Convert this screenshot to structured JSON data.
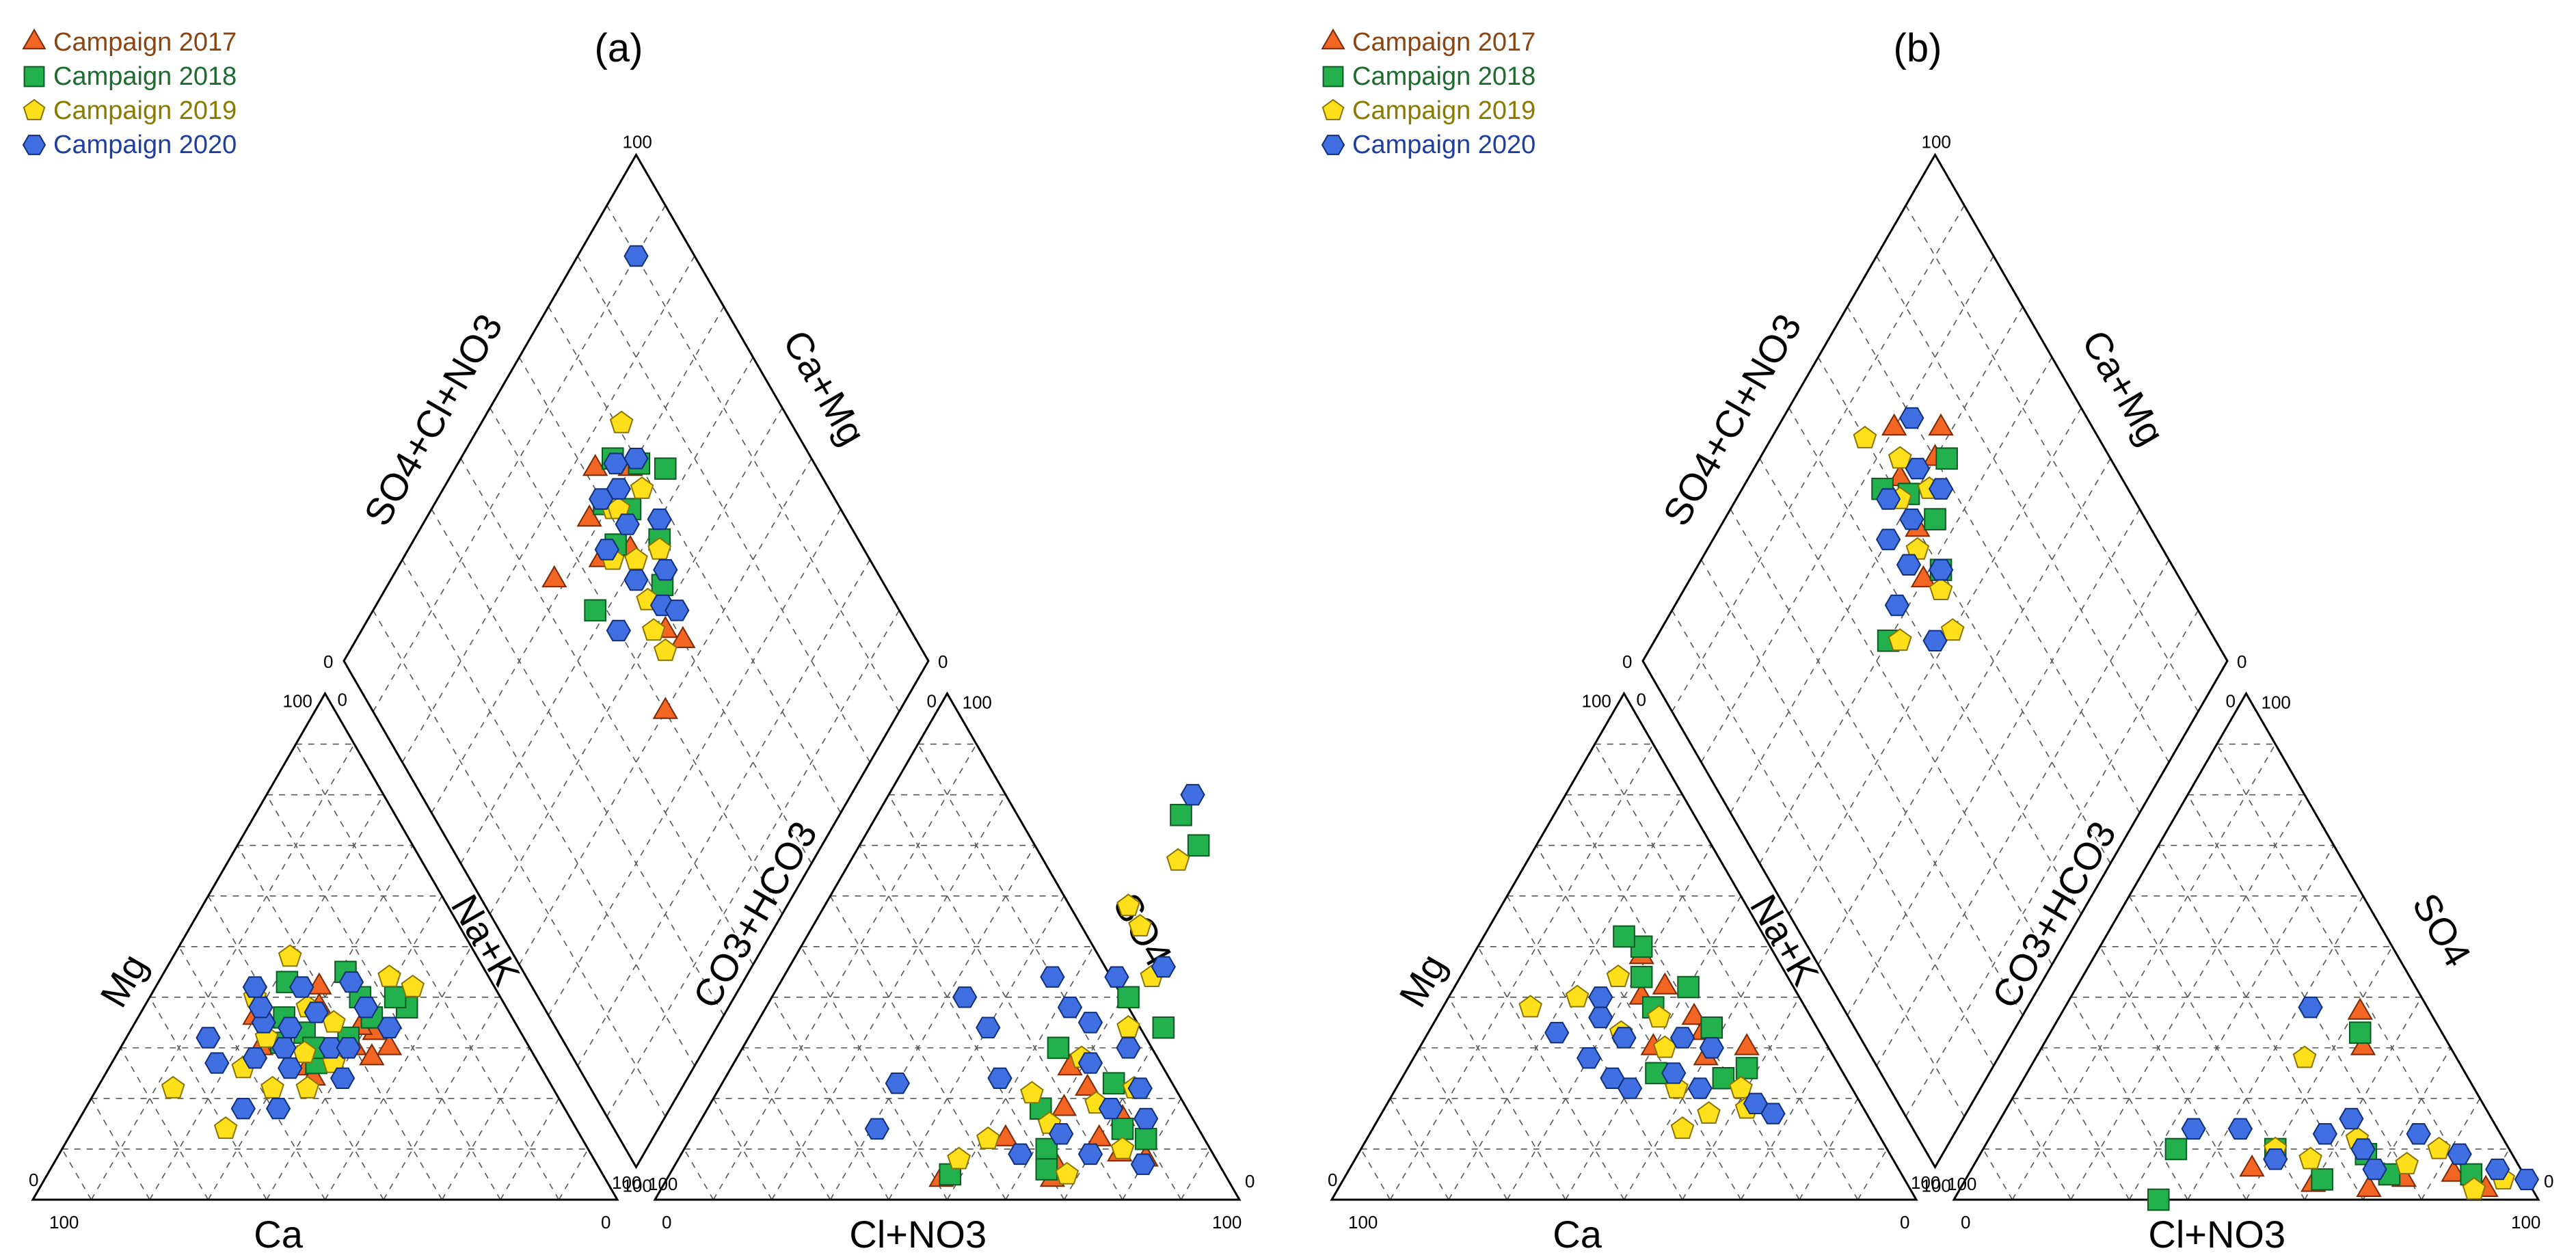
{
  "chart_data": [
    {
      "type": "scatter",
      "subtype": "piper-diagram",
      "title": "(a)",
      "legend": {
        "placement": "top-left",
        "entries": [
          {
            "name": "Campaign 2017",
            "marker": "triangle",
            "color": "#F26522",
            "text_color": "#8B4513"
          },
          {
            "name": "Campaign 2018",
            "marker": "square",
            "color": "#22B14C",
            "text_color": "#1E6B2F"
          },
          {
            "name": "Campaign 2019",
            "marker": "pentagon",
            "color": "#FFE01A",
            "text_color": "#8A7A00"
          },
          {
            "name": "Campaign 2020",
            "marker": "hexagon",
            "color": "#3F6FE0",
            "text_color": "#1F3F9F"
          }
        ]
      },
      "axis_labels": {
        "cation_left": "Mg",
        "cation_right": "Na+K",
        "cation_bottom": "Ca",
        "anion_left": "CO3+HCO3",
        "anion_right": "SO4",
        "anion_bottom": "Cl+NO3",
        "diamond_left": "SO4+Cl+NO3",
        "diamond_right": "Ca+Mg"
      },
      "ticks": {
        "cation_top": "0",
        "cation_left_top": "100",
        "cation_bottom_left": "100",
        "cation_bottom_right": "0",
        "cation_left_bottom": "0",
        "cation_right_bottom": "100",
        "anion_top": "0",
        "anion_right_top": "100",
        "anion_bottom_left": "0",
        "anion_bottom_right": "100",
        "anion_left_bottom": "100",
        "anion_right_bottom": "0",
        "diamond_top": "100",
        "diamond_left": "0",
        "diamond_right": "0",
        "diamond_bottom": "100"
      },
      "cation_points": {
        "Campaign 2017": [
          [
            42,
            33
          ],
          [
            40,
            30
          ],
          [
            44,
            28
          ],
          [
            30,
            38
          ],
          [
            34,
            26
          ],
          [
            36,
            24
          ],
          [
            46,
            30
          ],
          [
            39,
            34
          ],
          [
            20,
            36
          ],
          [
            28,
            42
          ],
          [
            24,
            30
          ]
        ],
        "Campaign 2018": [
          [
            36,
            40
          ],
          [
            30,
            33
          ],
          [
            40,
            36
          ],
          [
            35,
            27
          ],
          [
            27,
            31
          ],
          [
            22,
            43
          ],
          [
            38,
            32
          ],
          [
            45,
            38
          ],
          [
            31,
            45
          ],
          [
            25,
            36
          ],
          [
            33,
            30
          ],
          [
            42,
            40
          ]
        ],
        "Campaign 2019": [
          [
            13,
            22
          ],
          [
            26,
            14
          ],
          [
            30,
            22
          ],
          [
            24,
            32
          ],
          [
            34,
            35
          ],
          [
            18,
            40
          ],
          [
            32,
            29
          ],
          [
            28,
            38
          ],
          [
            39,
            44
          ],
          [
            36,
            22
          ],
          [
            23,
            26
          ],
          [
            44,
            42
          ],
          [
            20,
            48
          ],
          [
            38,
            27
          ]
        ],
        "Campaign 2020": [
          [
            14,
            32
          ],
          [
            18,
            27
          ],
          [
            27,
            18
          ],
          [
            33,
            18
          ],
          [
            41,
            24
          ],
          [
            36,
            30
          ],
          [
            27,
            34
          ],
          [
            22,
            35
          ],
          [
            30,
            37
          ],
          [
            25,
            42
          ],
          [
            20,
            38
          ],
          [
            17,
            42
          ],
          [
            33,
            43
          ],
          [
            38,
            38
          ],
          [
            28,
            30
          ],
          [
            24,
            28
          ],
          [
            31,
            26
          ],
          [
            39,
            30
          ],
          [
            44,
            34
          ]
        ]
      },
      "anion_points": {
        "Campaign 2017": [
          [
            54,
            12
          ],
          [
            65,
            7
          ],
          [
            70,
            12
          ],
          [
            61,
            18
          ],
          [
            75,
            9
          ],
          [
            66,
            4
          ],
          [
            58,
            26
          ],
          [
            72,
            16
          ],
          [
            47,
            4
          ],
          [
            80,
            8
          ],
          [
            63,
            22
          ]
        ],
        "Campaign 2018": [
          [
            52,
            76
          ],
          [
            58,
            70
          ],
          [
            48,
            5
          ],
          [
            62,
            10
          ],
          [
            57,
            18
          ],
          [
            67,
            23
          ],
          [
            73,
            14
          ],
          [
            54,
            30
          ],
          [
            70,
            34
          ],
          [
            61,
            40
          ],
          [
            78,
            12
          ],
          [
            64,
            6
          ]
        ],
        "Campaign 2019": [
          [
            56,
            67
          ],
          [
            52,
            58
          ],
          [
            56,
            54
          ],
          [
            51,
            12
          ],
          [
            60,
            15
          ],
          [
            66,
            19
          ],
          [
            59,
            28
          ],
          [
            71,
            22
          ],
          [
            64,
            34
          ],
          [
            63,
            44
          ],
          [
            75,
            10
          ],
          [
            54,
            21
          ],
          [
            68,
            5
          ],
          [
            48,
            8
          ]
        ],
        "Campaign 2020": [
          [
            52,
            80
          ],
          [
            64,
            46
          ],
          [
            57,
            44
          ],
          [
            46,
            44
          ],
          [
            33,
            40
          ],
          [
            30,
            23
          ],
          [
            31,
            14
          ],
          [
            58,
            9
          ],
          [
            63,
            13
          ],
          [
            69,
            18
          ],
          [
            72,
            22
          ],
          [
            76,
            16
          ],
          [
            70,
            9
          ],
          [
            80,
            7
          ],
          [
            61,
            27
          ],
          [
            57,
            35
          ],
          [
            66,
            30
          ],
          [
            52,
            38
          ],
          [
            40,
            34
          ],
          [
            47,
            24
          ]
        ]
      },
      "diamond_points": {
        "Campaign 2017": [
          [
            72,
            56
          ],
          [
            76,
            62
          ],
          [
            48,
            58
          ],
          [
            70,
            68
          ],
          [
            62,
            60
          ],
          [
            44,
            60
          ],
          [
            72,
            44
          ],
          [
            40,
            50
          ],
          [
            66,
            54
          ]
        ],
        "Campaign 2018": [
          [
            71,
            60
          ],
          [
            65,
            58
          ],
          [
            74,
            66
          ],
          [
            53,
            62
          ],
          [
            64,
            74
          ],
          [
            66,
            64
          ],
          [
            58,
            66
          ],
          [
            62,
            48
          ],
          [
            69,
            70
          ]
        ],
        "Campaign 2019": [
          [
            64,
            56
          ],
          [
            60,
            60
          ],
          [
            69,
            61
          ],
          [
            76,
            71
          ],
          [
            50,
            56
          ],
          [
            57,
            65
          ],
          [
            66,
            68
          ],
          [
            46,
            56
          ],
          [
            54,
            58
          ],
          [
            68,
            62
          ]
        ],
        "Campaign 2020": [
          [
            90,
            90
          ],
          [
            73,
            66
          ],
          [
            70,
            70
          ],
          [
            58,
            58
          ],
          [
            65,
            62
          ],
          [
            54,
            64
          ],
          [
            66,
            56
          ],
          [
            51,
            60
          ],
          [
            60,
            68
          ],
          [
            72,
            60
          ],
          [
            48,
            62
          ],
          [
            56,
            50
          ],
          [
            70,
            64
          ]
        ]
      }
    },
    {
      "type": "scatter",
      "subtype": "piper-diagram",
      "title": "(b)",
      "legend": {
        "placement": "top-left",
        "entries": [
          {
            "name": "Campaign 2017",
            "marker": "triangle",
            "color": "#F26522",
            "text_color": "#8B4513"
          },
          {
            "name": "Campaign 2018",
            "marker": "square",
            "color": "#22B14C",
            "text_color": "#1E6B2F"
          },
          {
            "name": "Campaign 2019",
            "marker": "pentagon",
            "color": "#FFE01A",
            "text_color": "#8A7A00"
          },
          {
            "name": "Campaign 2020",
            "marker": "hexagon",
            "color": "#3F6FE0",
            "text_color": "#1F3F9F"
          }
        ]
      },
      "axis_labels": {
        "cation_left": "Mg",
        "cation_right": "Na+K",
        "cation_bottom": "Ca",
        "anion_left": "CO3+HCO3",
        "anion_right": "SO4",
        "anion_bottom": "Cl+NO3",
        "diamond_left": "SO4+Cl+NO3",
        "diamond_right": "Ca+Mg"
      },
      "ticks": {
        "cation_top": "0",
        "cation_left_top": "100",
        "cation_bottom_left": "100",
        "cation_bottom_right": "0",
        "cation_left_bottom": "0",
        "cation_right_bottom": "100",
        "anion_top": "0",
        "anion_right_top": "100",
        "anion_bottom_left": "0",
        "anion_bottom_right": "100",
        "anion_left_bottom": "100",
        "anion_right_bottom": "0",
        "diamond_top": "100",
        "diamond_left": "0",
        "diamond_right": "0",
        "diamond_bottom": "100"
      },
      "cation_points": {
        "Campaign 2017": [
          [
            36,
            42
          ],
          [
            44,
            36
          ],
          [
            50,
            28
          ],
          [
            29,
            48
          ],
          [
            40,
            30
          ],
          [
            56,
            30
          ],
          [
            47,
            33
          ],
          [
            33,
            40
          ]
        ],
        "Campaign 2018": [
          [
            28,
            50
          ],
          [
            24,
            52
          ],
          [
            36,
            38
          ],
          [
            48,
            34
          ],
          [
            55,
            24
          ],
          [
            43,
            25
          ],
          [
            31,
            44
          ],
          [
            58,
            26
          ],
          [
            40,
            42
          ]
        ],
        "Campaign 2019": [
          [
            15,
            38
          ],
          [
            22,
            40
          ],
          [
            33,
            33
          ],
          [
            42,
            30
          ],
          [
            53,
            14
          ],
          [
            56,
            17
          ],
          [
            59,
            22
          ],
          [
            62,
            18
          ],
          [
            38,
            36
          ],
          [
            48,
            22
          ],
          [
            27,
            44
          ]
        ],
        "Campaign 2020": [
          [
            22,
            33
          ],
          [
            30,
            28
          ],
          [
            36,
            24
          ],
          [
            40,
            22
          ],
          [
            46,
            25
          ],
          [
            52,
            22
          ],
          [
            63,
            19
          ],
          [
            67,
            17
          ],
          [
            34,
            32
          ],
          [
            28,
            36
          ],
          [
            44,
            32
          ],
          [
            50,
            30
          ],
          [
            26,
            40
          ]
        ]
      },
      "anion_points": {
        "Campaign 2017": [
          [
            51,
            37
          ],
          [
            55,
            30
          ],
          [
            83,
            5
          ],
          [
            60,
            3
          ],
          [
            70,
            2
          ],
          [
            90,
            2
          ],
          [
            48,
            6
          ],
          [
            75,
            4
          ]
        ],
        "Campaign 2018": [
          [
            53,
            33
          ],
          [
            33,
            10
          ],
          [
            35,
            0
          ],
          [
            61,
            4
          ],
          [
            72,
            5
          ],
          [
            86,
            5
          ],
          [
            50,
            10
          ],
          [
            66,
            9
          ]
        ],
        "Campaign 2019": [
          [
            46,
            28
          ],
          [
            50,
            10
          ],
          [
            63,
            12
          ],
          [
            74,
            7
          ],
          [
            92,
            4
          ],
          [
            88,
            2
          ],
          [
            57,
            8
          ],
          [
            78,
            10
          ]
        ],
        "Campaign 2020": [
          [
            42,
            38
          ],
          [
            34,
            14
          ],
          [
            42,
            14
          ],
          [
            57,
            13
          ],
          [
            65,
            10
          ],
          [
            73,
            13
          ],
          [
            82,
            9
          ],
          [
            90,
            6
          ],
          [
            96,
            4
          ],
          [
            51,
            8
          ],
          [
            60,
            16
          ],
          [
            69,
            6
          ]
        ]
      },
      "diamond_points": {
        "Campaign 2017": [
          [
            70,
            70
          ],
          [
            74,
            62
          ],
          [
            66,
            60
          ],
          [
            60,
            56
          ],
          [
            80,
            66
          ],
          [
            72,
            74
          ]
        ],
        "Campaign 2018": [
          [
            60,
            44
          ],
          [
            71,
            62
          ],
          [
            64,
            64
          ],
          [
            68,
            72
          ],
          [
            76,
            58
          ],
          [
            58,
            60
          ]
        ],
        "Campaign 2019": [
          [
            72,
            60
          ],
          [
            64,
            58
          ],
          [
            56,
            58
          ],
          [
            58,
            46
          ],
          [
            76,
            64
          ],
          [
            84,
            60
          ],
          [
            50,
            56
          ],
          [
            68,
            66
          ]
        ],
        "Campaign 2020": [
          [
            62,
            49
          ],
          [
            74,
            58
          ],
          [
            68,
            60
          ],
          [
            72,
            66
          ],
          [
            64,
            55
          ],
          [
            58,
            60
          ],
          [
            78,
            70
          ],
          [
            52,
            52
          ],
          [
            70,
            54
          ],
          [
            66,
            68
          ]
        ]
      }
    }
  ]
}
